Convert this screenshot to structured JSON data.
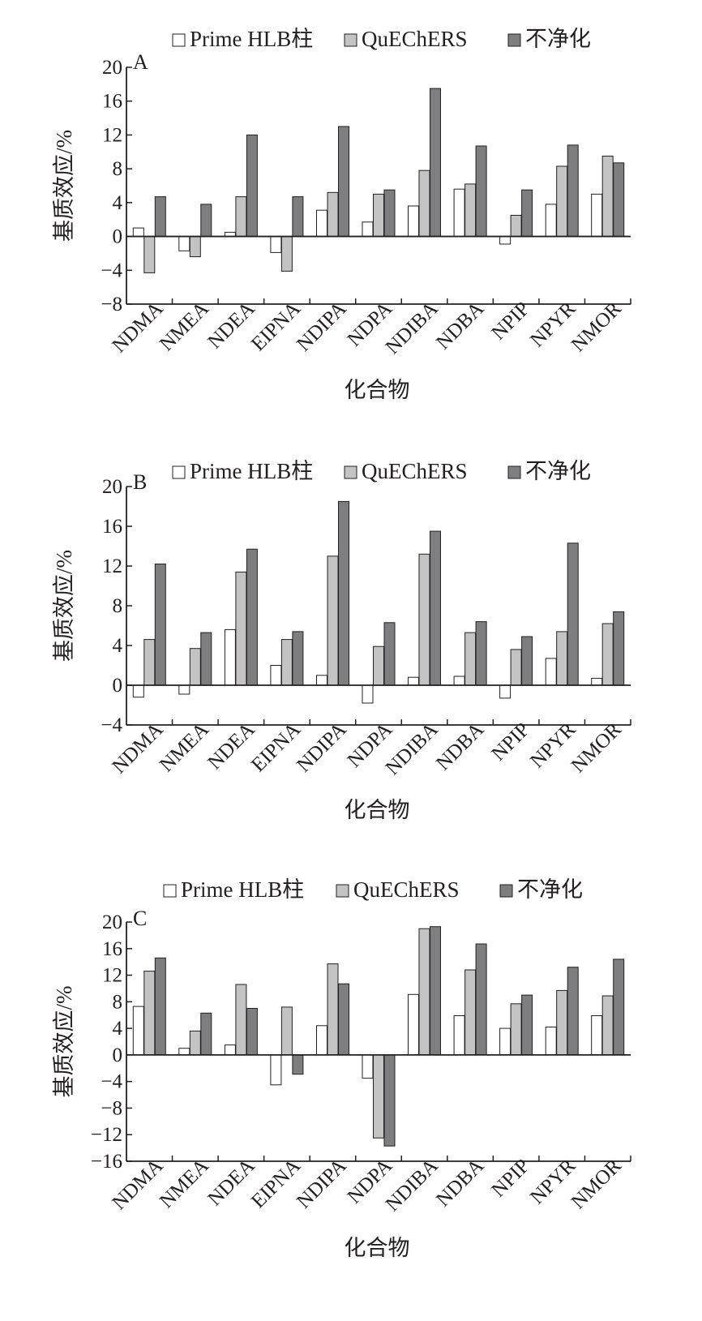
{
  "legend": [
    "Prime HLB柱",
    "QuEChERS",
    "不净化"
  ],
  "colors": {
    "Prime HLB柱": "#ffffff",
    "QuEChERS": "#c3c3c3",
    "不净化": "#7e7e80",
    "axis": "#231f20"
  },
  "chart_data": [
    {
      "type": "bar",
      "panel_label": "A",
      "categories": [
        "NDMA",
        "NMEA",
        "NDEA",
        "EIPNA",
        "NDIPA",
        "NDPA",
        "NDIBA",
        "NDBA",
        "NPIP",
        "NPYR",
        "NMOR"
      ],
      "series": [
        {
          "name": "Prime HLB柱",
          "values": [
            1.0,
            -1.7,
            0.5,
            -1.9,
            3.1,
            1.7,
            3.6,
            5.6,
            -0.9,
            3.8,
            5.0
          ]
        },
        {
          "name": "QuEChERS",
          "values": [
            -4.3,
            -2.4,
            4.7,
            -4.1,
            5.2,
            5.0,
            7.8,
            6.2,
            2.5,
            8.3,
            9.5
          ]
        },
        {
          "name": "不净化",
          "values": [
            4.7,
            3.8,
            12.0,
            4.7,
            13.0,
            5.5,
            17.5,
            10.7,
            5.5,
            10.8,
            8.7
          ]
        }
      ],
      "xlabel": "化合物",
      "ylabel": "基质效应/%",
      "ylim": [
        -8,
        20
      ],
      "yticks": [
        20,
        16,
        12,
        8,
        4,
        0,
        -4,
        -8
      ],
      "ytick_labels": [
        "20",
        "16",
        "12",
        "8",
        "4",
        "0",
        "−4",
        "−8"
      ],
      "grid": false,
      "legend_position": "top"
    },
    {
      "type": "bar",
      "panel_label": "B",
      "categories": [
        "NDMA",
        "NMEA",
        "NDEA",
        "EIPNA",
        "NDIPA",
        "NDPA",
        "NDIBA",
        "NDBA",
        "NPIP",
        "NPYR",
        "NMOR"
      ],
      "series": [
        {
          "name": "Prime HLB柱",
          "values": [
            -1.2,
            -0.9,
            5.6,
            2.0,
            1.0,
            -1.8,
            0.8,
            0.9,
            -1.3,
            2.7,
            0.7
          ]
        },
        {
          "name": "QuEChERS",
          "values": [
            4.6,
            3.7,
            11.4,
            4.6,
            13.0,
            3.9,
            13.2,
            5.3,
            3.6,
            5.4,
            6.2
          ]
        },
        {
          "name": "不净化",
          "values": [
            12.2,
            5.3,
            13.7,
            5.4,
            18.5,
            6.3,
            15.5,
            6.4,
            4.9,
            14.3,
            7.4
          ]
        }
      ],
      "xlabel": "化合物",
      "ylabel": "基质效应/%",
      "ylim": [
        -4,
        20
      ],
      "yticks": [
        20,
        16,
        12,
        8,
        4,
        0,
        -4
      ],
      "ytick_labels": [
        "20",
        "16",
        "12",
        "8",
        "4",
        "0",
        "−4"
      ],
      "grid": false,
      "legend_position": "top"
    },
    {
      "type": "bar",
      "panel_label": "C",
      "categories": [
        "NDMA",
        "NMEA",
        "NDEA",
        "EIPNA",
        "NDIPA",
        "NDPA",
        "NDIBA",
        "NDBA",
        "NPIP",
        "NPYR",
        "NMOR"
      ],
      "series": [
        {
          "name": "Prime HLB柱",
          "values": [
            7.3,
            1.0,
            1.5,
            -4.5,
            4.4,
            -3.5,
            9.1,
            5.9,
            4.0,
            4.2,
            5.9
          ]
        },
        {
          "name": "QuEChERS",
          "values": [
            12.6,
            3.6,
            10.6,
            7.2,
            13.7,
            -12.5,
            19.0,
            12.8,
            7.7,
            9.7,
            8.9
          ]
        },
        {
          "name": "不净化",
          "values": [
            14.6,
            6.3,
            7.0,
            -2.9,
            10.7,
            -13.7,
            19.3,
            16.7,
            9.0,
            13.2,
            14.4
          ]
        }
      ],
      "xlabel": "化合物",
      "ylabel": "基质效应/%",
      "ylim": [
        -16,
        20
      ],
      "yticks": [
        20,
        16,
        12,
        8,
        4,
        0,
        -4,
        -8,
        -12,
        -16
      ],
      "ytick_labels": [
        "20",
        "16",
        "12",
        "8",
        "4",
        "0",
        "−4",
        "−8",
        "−12",
        "−16"
      ],
      "grid": false,
      "legend_position": "top"
    }
  ]
}
